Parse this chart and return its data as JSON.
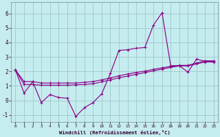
{
  "xlabel": "Windchill (Refroidissement éolien,°C)",
  "ylim": [
    -1.5,
    6.8
  ],
  "xlim": [
    -0.5,
    23.5
  ],
  "yticks": [
    -1,
    0,
    1,
    2,
    3,
    4,
    5,
    6
  ],
  "xticks": [
    0,
    1,
    2,
    3,
    4,
    5,
    6,
    7,
    8,
    9,
    10,
    11,
    12,
    13,
    14,
    15,
    16,
    17,
    18,
    19,
    20,
    21,
    22,
    23
  ],
  "background_color": "#c5ecee",
  "grid_color": "#9ec8cb",
  "line_color": "#880088",
  "line1_y": [
    2.1,
    0.5,
    1.3,
    -0.15,
    0.4,
    0.2,
    0.15,
    -1.1,
    -0.5,
    -0.15,
    0.45,
    1.85,
    3.45,
    3.5,
    3.6,
    3.65,
    5.2,
    6.05,
    2.4,
    2.4,
    1.95,
    2.85,
    2.7,
    2.7
  ],
  "line2_y": [
    2.1,
    1.3,
    1.3,
    1.2,
    1.2,
    1.2,
    1.2,
    1.2,
    1.25,
    1.3,
    1.42,
    1.55,
    1.7,
    1.82,
    1.93,
    2.02,
    2.14,
    2.25,
    2.35,
    2.42,
    2.42,
    2.58,
    2.73,
    2.73
  ],
  "line3_y": [
    2.1,
    1.1,
    1.1,
    1.05,
    1.05,
    1.05,
    1.05,
    1.08,
    1.1,
    1.15,
    1.28,
    1.42,
    1.56,
    1.68,
    1.8,
    1.92,
    2.04,
    2.16,
    2.28,
    2.38,
    2.38,
    2.52,
    2.65,
    2.65
  ]
}
